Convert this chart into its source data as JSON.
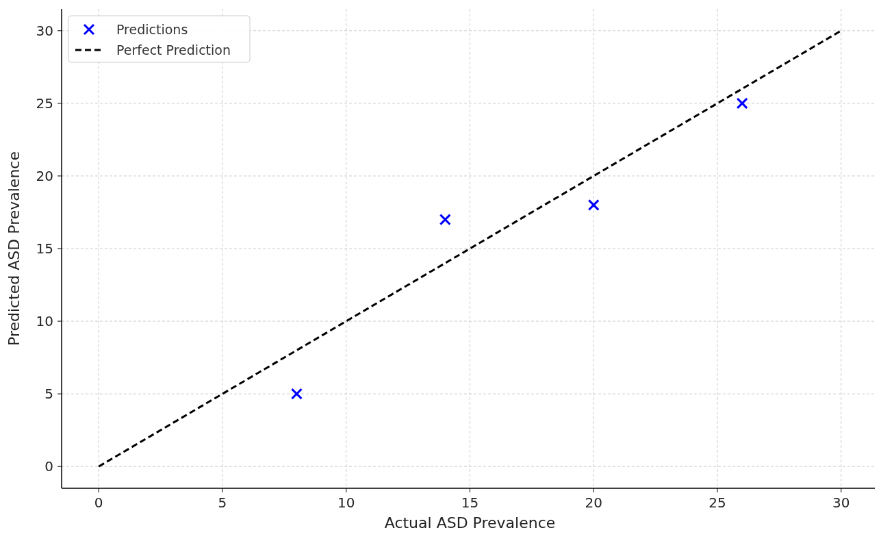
{
  "chart_data": {
    "type": "scatter",
    "xlabel": "Actual ASD Prevalence",
    "ylabel": "Predicted ASD Prevalence",
    "xlim": [
      -1.5,
      31.5
    ],
    "ylim": [
      -1.5,
      31.5
    ],
    "xticks": [
      0,
      5,
      10,
      15,
      20,
      25,
      30
    ],
    "yticks": [
      0,
      5,
      10,
      15,
      20,
      25,
      30
    ],
    "grid": true,
    "legend": "top left",
    "series": [
      {
        "name": "Predictions",
        "marker": "cross",
        "color": "#0000ff",
        "x": [
          8,
          14,
          20,
          26
        ],
        "values": [
          5,
          17,
          18,
          25
        ]
      },
      {
        "name": "Perfect Prediction",
        "type": "line",
        "marker": "none",
        "line_style": "dashed",
        "color": "#000000",
        "x": [
          0,
          30
        ],
        "values": [
          0,
          30
        ]
      }
    ]
  }
}
